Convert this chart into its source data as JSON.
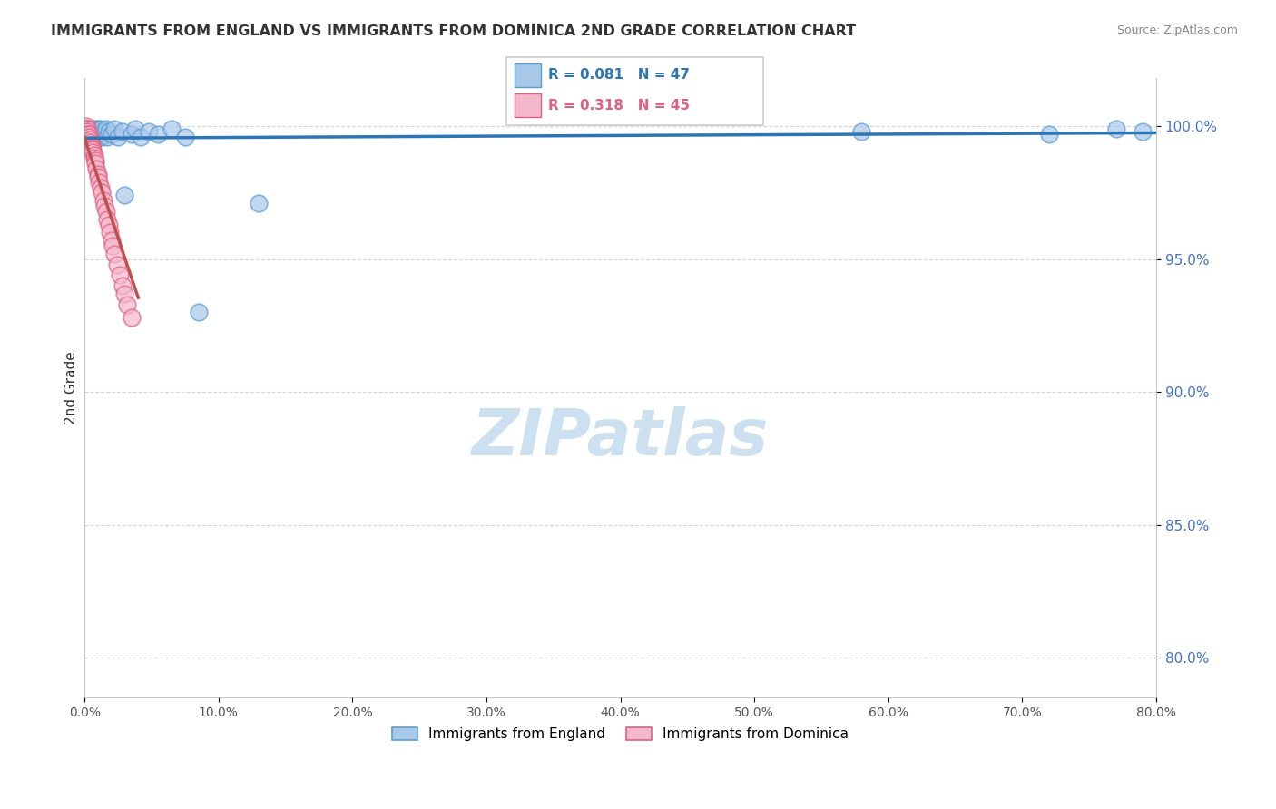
{
  "title": "IMMIGRANTS FROM ENGLAND VS IMMIGRANTS FROM DOMINICA 2ND GRADE CORRELATION CHART",
  "source": "Source: ZipAtlas.com",
  "ylabel": "2nd Grade",
  "ytick_labels": [
    "100.0%",
    "95.0%",
    "90.0%",
    "85.0%",
    "80.0%"
  ],
  "ytick_values": [
    1.0,
    0.95,
    0.9,
    0.85,
    0.8
  ],
  "xlim": [
    0.0,
    0.8
  ],
  "ylim": [
    0.785,
    1.018
  ],
  "england_color": "#a8c8e8",
  "england_edge_color": "#5b9bd5",
  "dominica_color": "#f4b8cc",
  "dominica_edge_color": "#e06080",
  "england_line_color": "#2e75b6",
  "dominica_line_color": "#c0504d",
  "england_R": 0.081,
  "england_N": 47,
  "dominica_R": 0.318,
  "dominica_N": 45,
  "ytick_color": "#4472c4",
  "watermark_color": "#cce0f0",
  "england_scatter_x": [
    0.001,
    0.002,
    0.002,
    0.003,
    0.003,
    0.004,
    0.004,
    0.005,
    0.005,
    0.006,
    0.006,
    0.007,
    0.007,
    0.008,
    0.008,
    0.009,
    0.009,
    0.01,
    0.01,
    0.011,
    0.011,
    0.012,
    0.012,
    0.013,
    0.014,
    0.015,
    0.016,
    0.017,
    0.018,
    0.02,
    0.022,
    0.025,
    0.028,
    0.03,
    0.035,
    0.038,
    0.042,
    0.048,
    0.055,
    0.065,
    0.075,
    0.085,
    0.13,
    0.58,
    0.72,
    0.77,
    0.79
  ],
  "england_scatter_y": [
    0.998,
    0.997,
    0.999,
    0.996,
    0.998,
    0.997,
    0.999,
    0.996,
    0.998,
    0.997,
    0.999,
    0.996,
    0.998,
    0.997,
    0.999,
    0.996,
    0.998,
    0.997,
    0.999,
    0.996,
    0.998,
    0.997,
    0.999,
    0.996,
    0.998,
    0.997,
    0.999,
    0.996,
    0.998,
    0.997,
    0.999,
    0.996,
    0.998,
    0.974,
    0.997,
    0.999,
    0.996,
    0.998,
    0.997,
    0.999,
    0.996,
    0.93,
    0.971,
    0.998,
    0.997,
    0.999,
    0.998
  ],
  "dominica_scatter_x": [
    0.001,
    0.001,
    0.001,
    0.001,
    0.002,
    0.002,
    0.002,
    0.002,
    0.003,
    0.003,
    0.003,
    0.003,
    0.004,
    0.004,
    0.004,
    0.005,
    0.005,
    0.005,
    0.006,
    0.006,
    0.007,
    0.007,
    0.008,
    0.008,
    0.009,
    0.01,
    0.01,
    0.011,
    0.012,
    0.013,
    0.014,
    0.015,
    0.016,
    0.017,
    0.018,
    0.019,
    0.02,
    0.021,
    0.022,
    0.024,
    0.026,
    0.028,
    0.03,
    0.032,
    0.035
  ],
  "dominica_scatter_y": [
    1.0,
    0.999,
    0.998,
    0.997,
    0.999,
    0.998,
    0.997,
    0.996,
    0.997,
    0.996,
    0.995,
    0.994,
    0.995,
    0.994,
    0.993,
    0.993,
    0.992,
    0.991,
    0.991,
    0.99,
    0.989,
    0.988,
    0.987,
    0.986,
    0.984,
    0.982,
    0.981,
    0.979,
    0.977,
    0.975,
    0.972,
    0.97,
    0.968,
    0.965,
    0.963,
    0.96,
    0.957,
    0.955,
    0.952,
    0.948,
    0.944,
    0.94,
    0.937,
    0.933,
    0.928
  ],
  "eng_line_x": [
    0.0,
    0.8
  ],
  "eng_line_y": [
    0.9955,
    0.9975
  ],
  "dom_line_x": [
    0.0,
    0.04
  ],
  "dom_line_y": [
    0.9955,
    0.9355
  ]
}
